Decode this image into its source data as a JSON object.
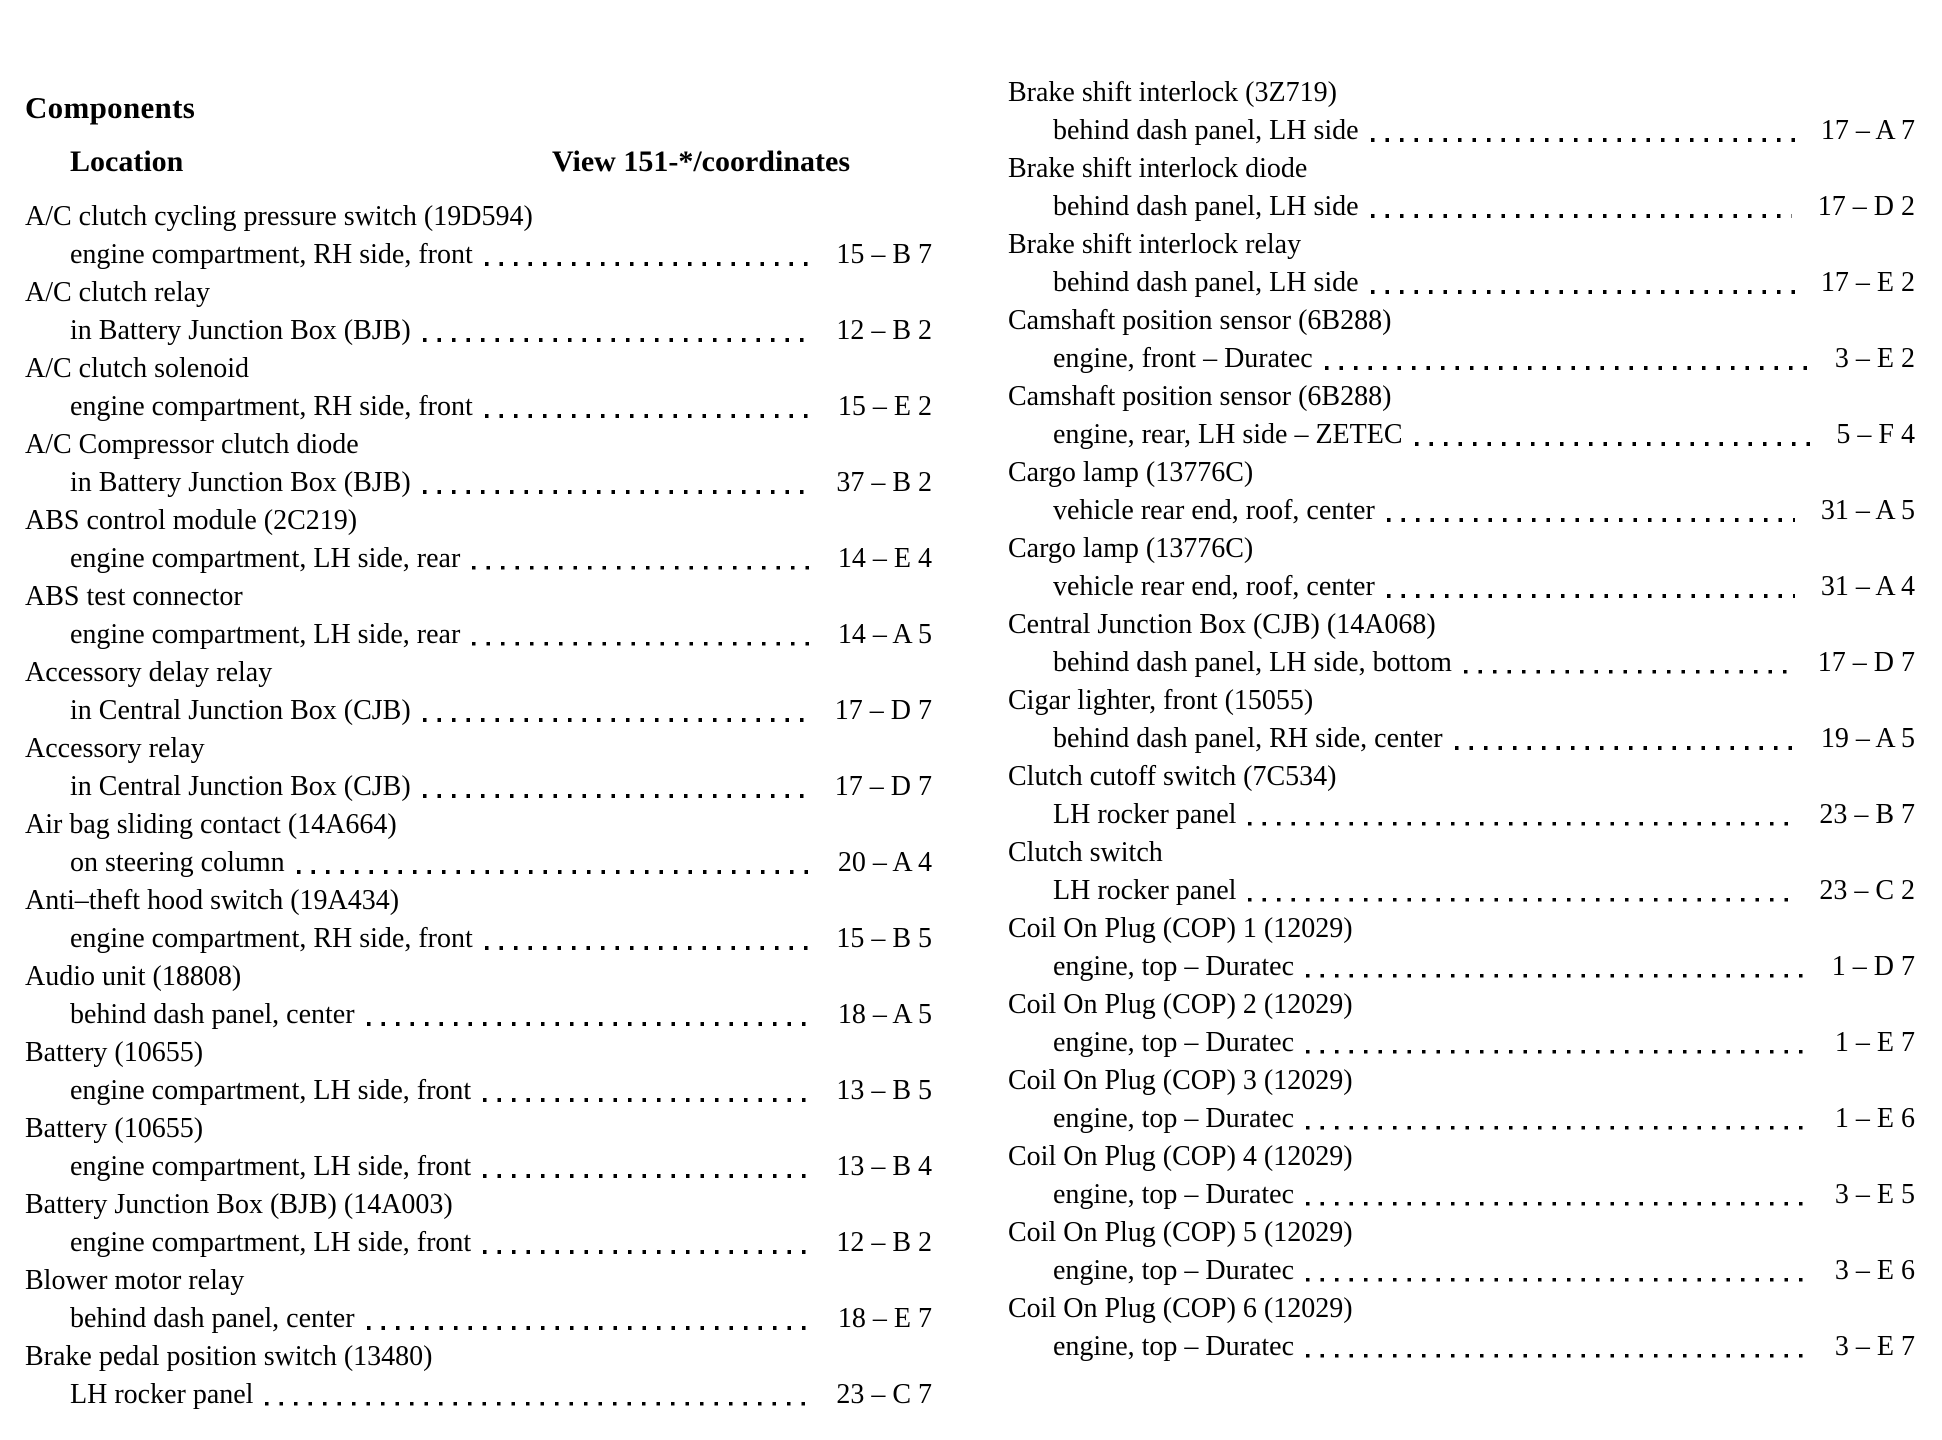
{
  "header": {
    "title": "Components",
    "location_label": "Location",
    "view_label": "View 151-*/coordinates"
  },
  "columns": {
    "left": [
      {
        "name": "A/C clutch cycling pressure switch (19D594)",
        "location": "engine compartment, RH side, front",
        "coordinate": "15 – B 7"
      },
      {
        "name": "A/C clutch relay",
        "location": "in Battery Junction Box (BJB)",
        "coordinate": "12 – B 2"
      },
      {
        "name": "A/C clutch solenoid",
        "location": "engine compartment, RH side, front",
        "coordinate": "15 – E 2"
      },
      {
        "name": "A/C Compressor clutch diode",
        "location": "in Battery Junction Box (BJB)",
        "coordinate": "37 – B 2"
      },
      {
        "name": "ABS control module (2C219)",
        "location": "engine compartment, LH side, rear",
        "coordinate": "14 – E 4"
      },
      {
        "name": "ABS test connector",
        "location": "engine compartment, LH side, rear",
        "coordinate": "14 – A 5"
      },
      {
        "name": "Accessory delay relay",
        "location": "in Central Junction Box (CJB)",
        "coordinate": "17 – D 7"
      },
      {
        "name": "Accessory relay",
        "location": "in Central Junction Box (CJB)",
        "coordinate": "17 – D 7"
      },
      {
        "name": "Air bag sliding contact (14A664)",
        "location": "on steering column",
        "coordinate": "20 – A 4"
      },
      {
        "name": "Anti–theft hood switch (19A434)",
        "location": "engine compartment, RH side, front",
        "coordinate": "15 – B 5"
      },
      {
        "name": "Audio unit (18808)",
        "location": "behind dash panel, center",
        "coordinate": "18 – A 5"
      },
      {
        "name": "Battery (10655)",
        "location": "engine compartment, LH side, front",
        "coordinate": "13 – B 5"
      },
      {
        "name": "Battery (10655)",
        "location": "engine compartment, LH side, front",
        "coordinate": "13 – B 4"
      },
      {
        "name": "Battery Junction Box (BJB) (14A003)",
        "location": "engine compartment, LH side, front",
        "coordinate": "12 – B 2"
      },
      {
        "name": "Blower motor relay",
        "location": "behind dash panel, center",
        "coordinate": "18 – E 7"
      },
      {
        "name": "Brake pedal position switch (13480)",
        "location": "LH rocker panel",
        "coordinate": "23 – C 7"
      }
    ],
    "right": [
      {
        "name": "Brake shift interlock (3Z719)",
        "location": "behind dash panel, LH side",
        "coordinate": "17 – A 7"
      },
      {
        "name": "Brake shift interlock diode",
        "location": "behind dash panel, LH side",
        "coordinate": "17 – D 2"
      },
      {
        "name": "Brake shift interlock relay",
        "location": "behind dash panel, LH side",
        "coordinate": "17 – E 2"
      },
      {
        "name": "Camshaft position sensor (6B288)",
        "location": "engine, front – Duratec",
        "coordinate": "3 – E 2"
      },
      {
        "name": "Camshaft position sensor (6B288)",
        "location": "engine, rear, LH side – ZETEC",
        "coordinate": "5 – F 4"
      },
      {
        "name": "Cargo lamp (13776C)",
        "location": "vehicle rear end, roof, center",
        "coordinate": "31 – A 5"
      },
      {
        "name": "Cargo lamp (13776C)",
        "location": "vehicle rear end, roof, center",
        "coordinate": "31 – A 4"
      },
      {
        "name": "Central Junction Box (CJB) (14A068)",
        "location": "behind dash panel, LH side, bottom",
        "coordinate": "17 – D 7"
      },
      {
        "name": "Cigar lighter, front (15055)",
        "location": "behind dash panel, RH side, center",
        "coordinate": "19 – A 5"
      },
      {
        "name": "Clutch cutoff switch (7C534)",
        "location": "LH rocker panel",
        "coordinate": "23 – B 7"
      },
      {
        "name": "Clutch switch",
        "location": "LH rocker panel",
        "coordinate": "23 – C 2"
      },
      {
        "name": "Coil On Plug (COP) 1 (12029)",
        "location": "engine, top – Duratec",
        "coordinate": "1 – D 7"
      },
      {
        "name": "Coil On Plug (COP) 2 (12029)",
        "location": "engine, top – Duratec",
        "coordinate": "1 – E 7"
      },
      {
        "name": "Coil On Plug (COP) 3 (12029)",
        "location": "engine, top – Duratec",
        "coordinate": "1 – E 6"
      },
      {
        "name": "Coil On Plug (COP) 4 (12029)",
        "location": "engine, top – Duratec",
        "coordinate": "3 – E 5"
      },
      {
        "name": "Coil On Plug (COP) 5 (12029)",
        "location": "engine, top – Duratec",
        "coordinate": "3 – E 6"
      },
      {
        "name": "Coil On Plug (COP) 6 (12029)",
        "location": "engine, top – Duratec",
        "coordinate": "3 – E 7"
      }
    ]
  }
}
